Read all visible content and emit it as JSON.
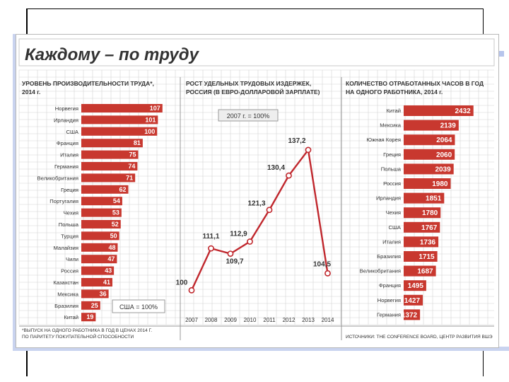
{
  "page_title": "Каждому – по труду",
  "footnote": "*ВЫПУСК НА ОДНОГО РАБОТНИКА В ГОД В ЦЕНАХ 2014 Г. ПО ПАРИТЕТУ ПОКУПАТЕЛЬНОЙ СПОСОБНОСТИ",
  "source_note": "ИСТОЧНИКИ: THE CONFERENCE BOARD, ЦЕНТР РАЗВИТИЯ ВШЭ",
  "colors": {
    "bar": "#c8382f",
    "line": "#c0272d",
    "grid": "#d4d4d4",
    "title": "#333333"
  },
  "chart_data": [
    {
      "type": "bar",
      "title": "УРОВЕНЬ ПРОИЗВОДИТЕЛЬНОСТИ ТРУДА*, 2014 г.",
      "annotation": "США = 100%",
      "categories": [
        "Норвегия",
        "Ирландия",
        "США",
        "Франция",
        "Италия",
        "Германия",
        "Великобритания",
        "Греция",
        "Португалия",
        "Чехия",
        "Польша",
        "Турция",
        "Малайзия",
        "Чили",
        "Россия",
        "Казахстан",
        "Мексика",
        "Бразилия",
        "Китай"
      ],
      "values": [
        107,
        101,
        100,
        81,
        75,
        74,
        71,
        62,
        54,
        53,
        52,
        50,
        48,
        47,
        43,
        41,
        36,
        25,
        19
      ],
      "xlim": [
        0,
        110
      ]
    },
    {
      "type": "line",
      "title": "РОСТ УДЕЛЬНЫХ ТРУДОВЫХ ИЗДЕРЖЕК, РОССИЯ (В ЕВРО-ДОЛЛАРОВОЙ ЗАРПЛАТЕ)",
      "annotation": "2007 г. = 100%",
      "x": [
        "2007",
        "2008",
        "2009",
        "2010",
        "2011",
        "2012",
        "2013",
        "2014"
      ],
      "values": [
        100,
        111.1,
        109.7,
        112.9,
        121.3,
        130.4,
        137.2,
        104.5
      ],
      "value_labels": [
        "100",
        "111,1",
        "109,7",
        "112,9",
        "121,3",
        "130,4",
        "137,2",
        "104,5"
      ],
      "ylim": [
        95,
        140
      ]
    },
    {
      "type": "bar",
      "title": "КОЛИЧЕСТВО ОТРАБОТАННЫХ ЧАСОВ В ГОД НА ОДНОГО РАБОТНИКА, 2014 г.",
      "categories": [
        "Китай",
        "Мексика",
        "Южная Корея",
        "Греция",
        "Польша",
        "Россия",
        "Ирландия",
        "Чехия",
        "США",
        "Италия",
        "Бразилия",
        "Великобритания",
        "Франция",
        "Норвегия",
        "Германия"
      ],
      "values": [
        2432,
        2139,
        2064,
        2060,
        2039,
        1980,
        1851,
        1780,
        1767,
        1736,
        1715,
        1687,
        1495,
        1427,
        1372
      ],
      "xlim": [
        1000,
        2450
      ]
    }
  ]
}
